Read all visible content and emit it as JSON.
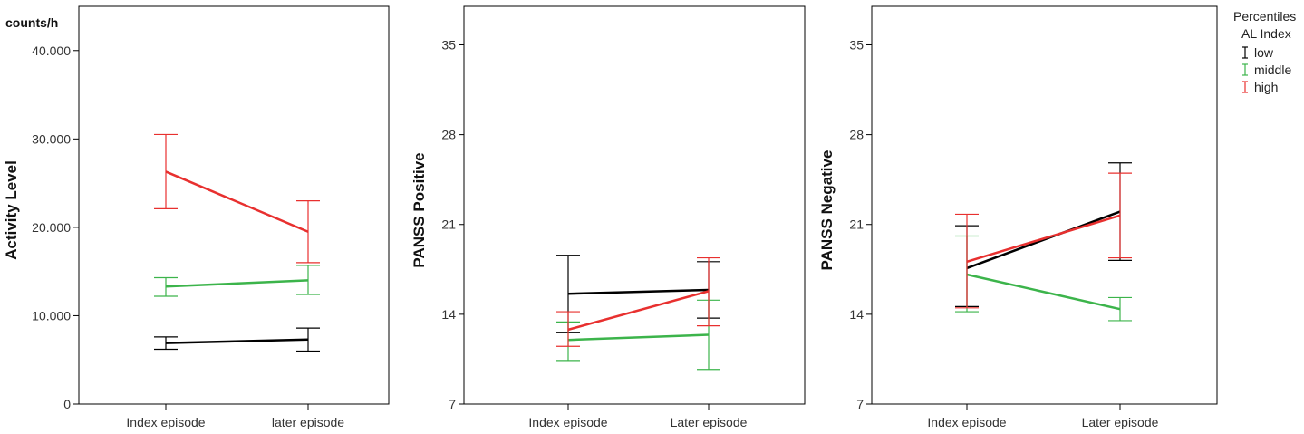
{
  "legend": {
    "title_line1": "Percentiles",
    "title_line2": "AL Index",
    "items": [
      {
        "label": "low",
        "color": "#000000"
      },
      {
        "label": "middle",
        "color": "#3cb44b"
      },
      {
        "label": "high",
        "color": "#e8302f"
      }
    ],
    "placement": "right"
  },
  "chart_data": [
    {
      "type": "line",
      "unit_label": "counts/h",
      "xlabel": "",
      "ylabel": "Activity Level",
      "categories": [
        "Index episode",
        "later episode"
      ],
      "ylim": [
        0,
        45000
      ],
      "yticks": [
        0,
        10000,
        20000,
        30000,
        40000
      ],
      "ytick_labels": [
        "0",
        "10.000",
        "20.000",
        "30.000",
        "40.000"
      ],
      "grid": false,
      "error_bars": true,
      "series": [
        {
          "name": "low",
          "color": "#000000",
          "values": [
            6900,
            7300
          ],
          "err_low": [
            6200,
            6000
          ],
          "err_high": [
            7600,
            8600
          ]
        },
        {
          "name": "middle",
          "color": "#3cb44b",
          "values": [
            13300,
            14000
          ],
          "err_low": [
            12200,
            12400
          ],
          "err_high": [
            14300,
            15700
          ]
        },
        {
          "name": "high",
          "color": "#e8302f",
          "values": [
            26300,
            19500
          ],
          "err_low": [
            22100,
            16000
          ],
          "err_high": [
            30500,
            23000
          ]
        }
      ]
    },
    {
      "type": "line",
      "unit_label": "",
      "xlabel": "",
      "ylabel": "PANSS Positive",
      "categories": [
        "Index episode",
        "Later episode"
      ],
      "ylim": [
        7,
        38
      ],
      "yticks": [
        7,
        14,
        21,
        28,
        35
      ],
      "ytick_labels": [
        "7",
        "14",
        "21",
        "28",
        "35"
      ],
      "grid": false,
      "error_bars": true,
      "series": [
        {
          "name": "low",
          "color": "#000000",
          "values": [
            15.6,
            15.9
          ],
          "err_low": [
            12.6,
            13.7
          ],
          "err_high": [
            18.6,
            18.1
          ]
        },
        {
          "name": "middle",
          "color": "#3cb44b",
          "values": [
            12.0,
            12.4
          ],
          "err_low": [
            10.4,
            9.7
          ],
          "err_high": [
            13.4,
            15.1
          ]
        },
        {
          "name": "high",
          "color": "#e8302f",
          "values": [
            12.8,
            15.8
          ],
          "err_low": [
            11.5,
            13.1
          ],
          "err_high": [
            14.2,
            18.4
          ]
        }
      ]
    },
    {
      "type": "line",
      "unit_label": "",
      "xlabel": "",
      "ylabel": "PANSS Negative",
      "categories": [
        "Index episode",
        "Later episode"
      ],
      "ylim": [
        7,
        38
      ],
      "yticks": [
        7,
        14,
        21,
        28,
        35
      ],
      "ytick_labels": [
        "7",
        "14",
        "21",
        "28",
        "35"
      ],
      "grid": false,
      "error_bars": true,
      "series": [
        {
          "name": "low",
          "color": "#000000",
          "values": [
            17.6,
            22.0
          ],
          "err_low": [
            14.6,
            18.2
          ],
          "err_high": [
            20.9,
            25.8
          ]
        },
        {
          "name": "middle",
          "color": "#3cb44b",
          "values": [
            17.1,
            14.4
          ],
          "err_low": [
            14.2,
            13.5
          ],
          "err_high": [
            20.1,
            15.3
          ]
        },
        {
          "name": "high",
          "color": "#e8302f",
          "values": [
            18.1,
            21.7
          ],
          "err_low": [
            14.5,
            18.4
          ],
          "err_high": [
            21.8,
            25.0
          ]
        }
      ]
    }
  ]
}
